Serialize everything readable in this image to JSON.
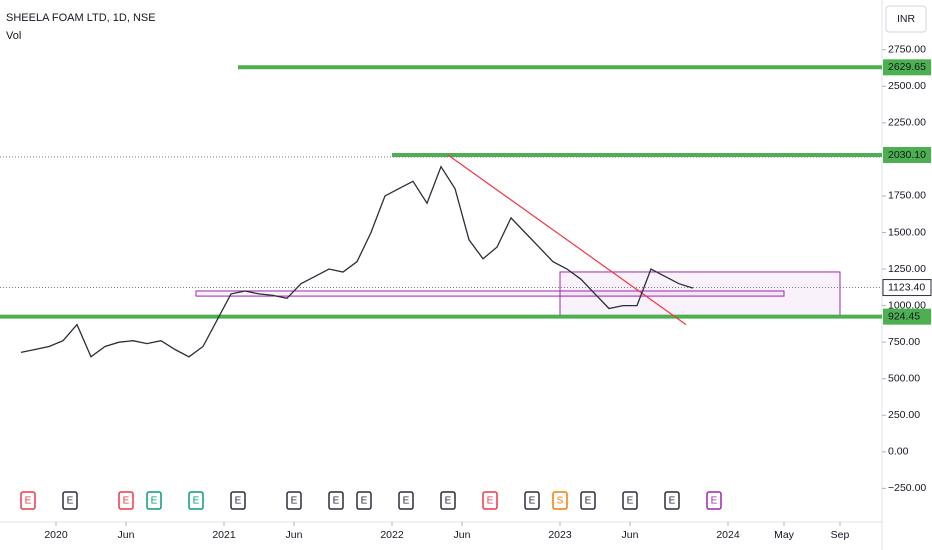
{
  "chart_data": {
    "type": "line",
    "title": "SHEELA FOAM LTD, 1D, NSE",
    "subtitle": "Vol",
    "currency": "INR",
    "color": "#2a2e39",
    "x": [
      "2019-10",
      "2019-11",
      "2019-12",
      "2020-01",
      "2020-02",
      "2020-03",
      "2020-04",
      "2020-05",
      "2020-06",
      "2020-07",
      "2020-08",
      "2020-09",
      "2020-10",
      "2020-11",
      "2020-12",
      "2021-01",
      "2021-02",
      "2021-03",
      "2021-04",
      "2021-05",
      "2021-06",
      "2021-07",
      "2021-08",
      "2021-09",
      "2021-10",
      "2021-11",
      "2021-12",
      "2022-01",
      "2022-02",
      "2022-03",
      "2022-04",
      "2022-05",
      "2022-06",
      "2022-07",
      "2022-08",
      "2022-09",
      "2022-10",
      "2022-11",
      "2022-12",
      "2023-01",
      "2023-02",
      "2023-03",
      "2023-04",
      "2023-05",
      "2023-06",
      "2023-07",
      "2023-08",
      "2023-09",
      "2023-10"
    ],
    "values": [
      680,
      700,
      720,
      760,
      870,
      650,
      720,
      750,
      760,
      740,
      760,
      700,
      650,
      720,
      900,
      1080,
      1100,
      1080,
      1070,
      1050,
      1150,
      1200,
      1250,
      1230,
      1300,
      1500,
      1750,
      1800,
      1850,
      1700,
      1950,
      1800,
      1450,
      1320,
      1400,
      1600,
      1500,
      1400,
      1300,
      1250,
      1180,
      1080,
      980,
      1000,
      1000,
      1250,
      1200,
      1150,
      1120
    ],
    "xlim": [
      "2019-09",
      "2024-12"
    ],
    "xticks": [
      {
        "value": "2020-01",
        "label": "2020"
      },
      {
        "value": "2020-06",
        "label": "Jun"
      },
      {
        "value": "2021-01",
        "label": "2021"
      },
      {
        "value": "2021-06",
        "label": "Jun"
      },
      {
        "value": "2022-01",
        "label": "2022"
      },
      {
        "value": "2022-06",
        "label": "Jun"
      },
      {
        "value": "2023-01",
        "label": "2023"
      },
      {
        "value": "2023-06",
        "label": "Jun"
      },
      {
        "value": "2024-01",
        "label": "2024"
      },
      {
        "value": "2024-05",
        "label": "May"
      },
      {
        "value": "2024-09",
        "label": "Sep"
      }
    ],
    "ylim": [
      -480,
      3090
    ],
    "yticks": [
      {
        "value": 2750,
        "label": "2750.00"
      },
      {
        "value": 2500,
        "label": "2500.00"
      },
      {
        "value": 2250,
        "label": "2250.00"
      },
      {
        "value": 1750,
        "label": "1750.00"
      },
      {
        "value": 1500,
        "label": "1500.00"
      },
      {
        "value": 1250,
        "label": "1250.00"
      },
      {
        "value": 1000,
        "label": "1000.00"
      },
      {
        "value": 750,
        "label": "750.00"
      },
      {
        "value": 500,
        "label": "500.00"
      },
      {
        "value": 250,
        "label": "250.00"
      },
      {
        "value": 0,
        "label": "0.00"
      },
      {
        "value": -250,
        "label": "−250.00"
      }
    ],
    "last": {
      "value": 1123.4,
      "label": "1123.40"
    },
    "hlines": [
      {
        "value": 2629.65,
        "label": "2629.65",
        "from": "2021-02",
        "color": "#4caf50"
      },
      {
        "value": 2030.1,
        "label": "2030.10",
        "from": "2022-01",
        "color": "#4caf50"
      },
      {
        "value": 924.45,
        "label": "924.45",
        "from": "2019-09",
        "color": "#4caf50"
      }
    ],
    "trendline": {
      "from": [
        "2022-05",
        2030
      ],
      "to": [
        "2023-10",
        870
      ],
      "color": "#f23645"
    },
    "rects": [
      {
        "x": [
          "2020-11",
          "2024-05"
        ],
        "y": [
          1065,
          1100
        ],
        "color": "#9c27b0"
      },
      {
        "x": [
          "2023-01",
          "2024-09"
        ],
        "y": [
          920,
          1230
        ],
        "color": "#9c27b0"
      }
    ],
    "events": [
      {
        "label": "E",
        "date": "2019-11",
        "color": "#f23645"
      },
      {
        "label": "E",
        "date": "2020-02",
        "color": "#2a2e39"
      },
      {
        "label": "E",
        "date": "2020-06",
        "color": "#f23645"
      },
      {
        "label": "E",
        "date": "2020-08",
        "color": "#089981"
      },
      {
        "label": "E",
        "date": "2020-11",
        "color": "#089981"
      },
      {
        "label": "E",
        "date": "2021-02",
        "color": "#2a2e39"
      },
      {
        "label": "E",
        "date": "2021-06",
        "color": "#2a2e39"
      },
      {
        "label": "E",
        "date": "2021-09",
        "color": "#2a2e39"
      },
      {
        "label": "E",
        "date": "2021-11",
        "color": "#2a2e39"
      },
      {
        "label": "E",
        "date": "2022-02",
        "color": "#2a2e39"
      },
      {
        "label": "E",
        "date": "2022-05",
        "color": "#2a2e39"
      },
      {
        "label": "E",
        "date": "2022-08",
        "color": "#f23645"
      },
      {
        "label": "E",
        "date": "2022-11",
        "color": "#2a2e39"
      },
      {
        "label": "S",
        "date": "2023-01",
        "color": "#f57c00"
      },
      {
        "label": "E",
        "date": "2023-03",
        "color": "#2a2e39"
      },
      {
        "label": "E",
        "date": "2023-06",
        "color": "#2a2e39"
      },
      {
        "label": "E",
        "date": "2023-09",
        "color": "#2a2e39"
      },
      {
        "label": "E",
        "date": "2023-12",
        "color": "#9c27b0"
      }
    ]
  }
}
